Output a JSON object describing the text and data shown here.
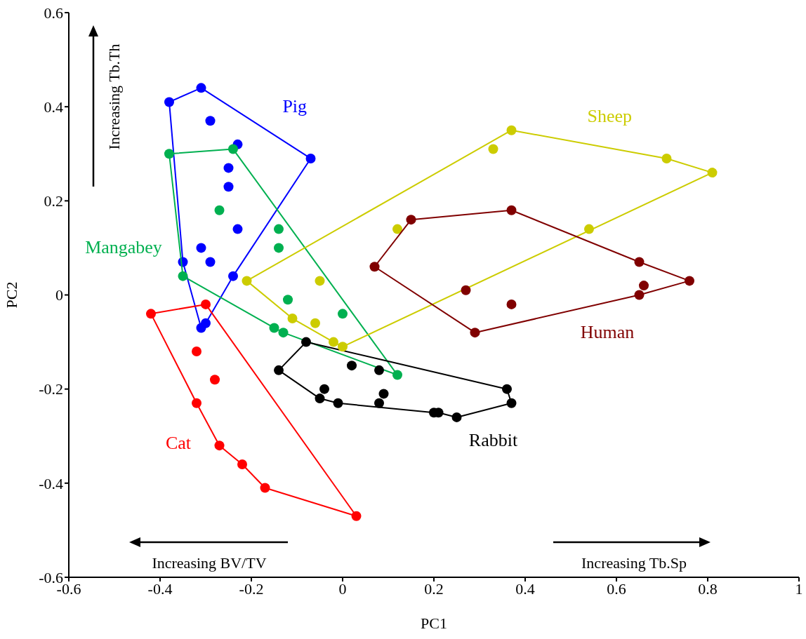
{
  "chart_data": {
    "type": "scatter",
    "xlabel": "PC1",
    "ylabel": "PC2",
    "xlim": [
      -0.6,
      1
    ],
    "xticks": [
      -0.6,
      -0.4,
      -0.2,
      0,
      0.2,
      0.4,
      0.6,
      0.8,
      1
    ],
    "ylim": [
      -0.6,
      0.6
    ],
    "yticks": [
      -0.6,
      -0.4,
      -0.2,
      0,
      0.2,
      0.4,
      0.6
    ],
    "grid": false,
    "legend": false,
    "marker": "circle",
    "annotations": [
      "Increasing Tb.Th",
      "Increasing BV/TV",
      "Increasing Tb.Sp"
    ],
    "series": [
      {
        "name": "Pig",
        "color": "#0000ff",
        "x": [
          -0.38,
          -0.31,
          -0.29,
          -0.23,
          -0.07,
          -0.25,
          -0.25,
          -0.23,
          -0.31,
          -0.29,
          -0.35,
          -0.24,
          -0.3,
          -0.31
        ],
        "values": [
          0.41,
          0.44,
          0.37,
          0.32,
          0.29,
          0.27,
          0.23,
          0.14,
          0.1,
          0.07,
          0.07,
          0.04,
          -0.06,
          -0.07
        ]
      },
      {
        "type": "line",
        "marker": "none",
        "color": "#0000ff",
        "x": [
          -0.38,
          -0.31,
          -0.07
        ],
        "values": [
          0.41,
          0.44,
          0.29
        ]
      },
      {
        "type": "line",
        "marker": "none",
        "color": "#0000ff",
        "x": [
          -0.38,
          -0.35,
          -0.31,
          -0.3,
          -0.24,
          -0.07
        ],
        "values": [
          0.41,
          0.07,
          -0.07,
          -0.06,
          0.04,
          0.29
        ]
      },
      {
        "name": "Mangabey",
        "color": "#00b050",
        "x": [
          -0.38,
          -0.24,
          -0.27,
          -0.14,
          -0.14,
          -0.35,
          -0.12,
          0.0,
          -0.15,
          -0.13,
          0.12
        ],
        "values": [
          0.3,
          0.31,
          0.18,
          0.14,
          0.1,
          0.04,
          -0.01,
          -0.04,
          -0.07,
          -0.08,
          -0.17
        ]
      },
      {
        "type": "line",
        "marker": "none",
        "color": "#00b050",
        "x": [
          -0.38,
          -0.24,
          0.12
        ],
        "values": [
          0.3,
          0.31,
          -0.17
        ]
      },
      {
        "type": "line",
        "marker": "none",
        "color": "#00b050",
        "x": [
          -0.38,
          -0.35,
          -0.15,
          -0.13,
          0.12
        ],
        "values": [
          0.3,
          0.04,
          -0.07,
          -0.08,
          -0.17
        ]
      },
      {
        "name": "Cat",
        "color": "#ff0000",
        "x": [
          -0.42,
          -0.3,
          -0.32,
          -0.28,
          -0.32,
          -0.27,
          -0.22,
          -0.17,
          0.03
        ],
        "values": [
          -0.04,
          -0.02,
          -0.12,
          -0.18,
          -0.23,
          -0.32,
          -0.36,
          -0.41,
          -0.47
        ]
      },
      {
        "type": "line",
        "marker": "none",
        "color": "#ff0000",
        "x": [
          -0.42,
          -0.3,
          0.03
        ],
        "values": [
          -0.04,
          -0.02,
          -0.47
        ]
      },
      {
        "type": "line",
        "marker": "none",
        "color": "#ff0000",
        "x": [
          -0.42,
          -0.32,
          -0.27,
          -0.22,
          -0.17,
          0.03
        ],
        "values": [
          -0.04,
          -0.23,
          -0.32,
          -0.36,
          -0.41,
          -0.47
        ]
      },
      {
        "name": "Rabbit",
        "color": "#000000",
        "x": [
          -0.08,
          -0.14,
          0.02,
          0.08,
          -0.04,
          -0.05,
          -0.01,
          0.08,
          0.09,
          0.2,
          0.21,
          0.25,
          0.36,
          0.37
        ],
        "values": [
          -0.1,
          -0.16,
          -0.15,
          -0.16,
          -0.2,
          -0.22,
          -0.23,
          -0.23,
          -0.21,
          -0.25,
          -0.25,
          -0.26,
          -0.2,
          -0.23
        ]
      },
      {
        "type": "line",
        "marker": "none",
        "color": "#000000",
        "x": [
          -0.14,
          -0.08,
          0.36,
          0.37
        ],
        "values": [
          -0.16,
          -0.1,
          -0.2,
          -0.23
        ]
      },
      {
        "type": "line",
        "marker": "none",
        "color": "#000000",
        "x": [
          -0.14,
          -0.05,
          -0.01,
          0.2,
          0.21,
          0.25,
          0.37
        ],
        "values": [
          -0.16,
          -0.22,
          -0.23,
          -0.25,
          -0.25,
          -0.26,
          -0.23
        ]
      },
      {
        "name": "Sheep",
        "color": "#cccc00",
        "x": [
          -0.21,
          0.33,
          0.37,
          0.71,
          0.81,
          0.54,
          0.12,
          -0.05,
          -0.11,
          -0.06,
          -0.02,
          0.0
        ],
        "values": [
          0.03,
          0.31,
          0.35,
          0.29,
          0.26,
          0.14,
          0.14,
          0.03,
          -0.05,
          -0.06,
          -0.1,
          -0.11
        ]
      },
      {
        "type": "line",
        "marker": "none",
        "color": "#cccc00",
        "x": [
          -0.21,
          0.37,
          0.71,
          0.81
        ],
        "values": [
          0.03,
          0.35,
          0.29,
          0.26
        ]
      },
      {
        "type": "line",
        "marker": "none",
        "color": "#cccc00",
        "x": [
          -0.21,
          -0.11,
          -0.02,
          0.0,
          0.81
        ],
        "values": [
          0.03,
          -0.05,
          -0.1,
          -0.11,
          0.26
        ]
      },
      {
        "name": "Human",
        "color": "#800000",
        "x": [
          0.07,
          0.15,
          0.37,
          0.65,
          0.76,
          0.66,
          0.65,
          0.27,
          0.37,
          0.29
        ],
        "values": [
          0.06,
          0.16,
          0.18,
          0.07,
          0.03,
          0.02,
          0.0,
          0.01,
          -0.02,
          -0.08
        ]
      },
      {
        "type": "line",
        "marker": "none",
        "color": "#800000",
        "x": [
          0.07,
          0.15,
          0.37,
          0.65,
          0.76
        ],
        "values": [
          0.06,
          0.16,
          0.18,
          0.07,
          0.03
        ]
      },
      {
        "type": "line",
        "marker": "none",
        "color": "#800000",
        "x": [
          0.07,
          0.29,
          0.65,
          0.76
        ],
        "values": [
          0.06,
          -0.08,
          0.0,
          0.03
        ]
      }
    ]
  }
}
